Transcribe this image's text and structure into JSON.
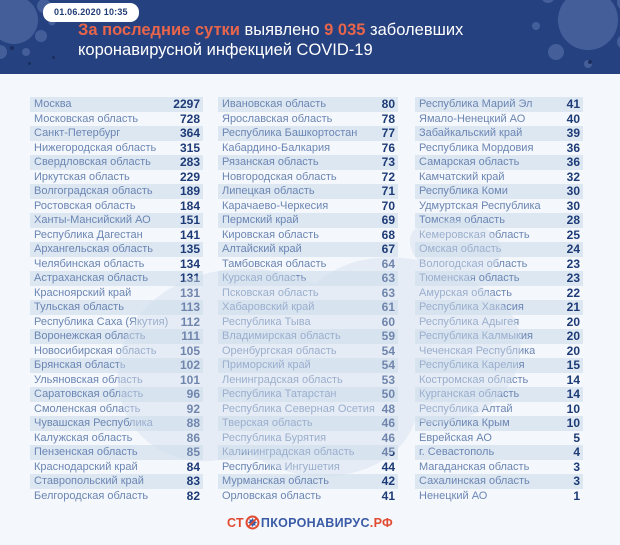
{
  "header": {
    "timestamp": "01.06.2020 10:35",
    "accent1": "За последние сутки ",
    "mid": "выявлено ",
    "count": "9 035 ",
    "tail": "заболевших",
    "line2": "коронавирусной инфекцией COVID-19"
  },
  "footer": {
    "logo_prefix": "СТ",
    "logo_body": "ПКОРОНАВИРУС",
    "logo_tld": ".РФ",
    "logo_icon": "no-virus-icon"
  },
  "colors": {
    "header_navy": "#26417f",
    "accent_orange": "#e7654b",
    "stripe_blue": "#dde7f2",
    "name_blue": "#6b86b3",
    "value_navy": "#1d3b76",
    "logo_red": "#e14a30",
    "logo_blue": "#3a5ba6",
    "splat_blue": "#46609c"
  },
  "chart_data": {
    "type": "table",
    "title": "За последние сутки выявлено 9 035 заболевших коронавирусной инфекцией COVID-19",
    "timestamp": "01.06.2020 10:35",
    "total_new_cases": 9035,
    "column_fields": [
      "region",
      "new_cases"
    ],
    "columns": [
      {
        "rows": [
          [
            "Москва",
            2297
          ],
          [
            "Московская область",
            728
          ],
          [
            "Санкт-Петербург",
            364
          ],
          [
            "Нижегородская область",
            315
          ],
          [
            "Свердловская область",
            283
          ],
          [
            "Иркутская область",
            229
          ],
          [
            "Волгоградская область",
            189
          ],
          [
            "Ростовская область",
            184
          ],
          [
            "Ханты-Мансийский АО",
            151
          ],
          [
            "Республика Дагестан",
            141
          ],
          [
            "Архангельская область",
            135
          ],
          [
            "Челябинская область",
            134
          ],
          [
            "Астраханская область",
            131
          ],
          [
            "Красноярский край",
            131
          ],
          [
            "Тульская область",
            113
          ],
          [
            "Республика Саха (Якутия)",
            112
          ],
          [
            "Воронежская область",
            111
          ],
          [
            "Новосибирская область",
            105
          ],
          [
            "Брянская область",
            102
          ],
          [
            "Ульяновская область",
            101
          ],
          [
            "Саратовская область",
            96
          ],
          [
            "Смоленская область",
            92
          ],
          [
            "Чувашская Республика",
            88
          ],
          [
            "Калужская область",
            86
          ],
          [
            "Пензенская область",
            85
          ],
          [
            "Краснодарский край",
            84
          ],
          [
            "Ставропольский край",
            83
          ],
          [
            "Белгородская область",
            82
          ]
        ]
      },
      {
        "rows": [
          [
            "Ивановская область",
            80
          ],
          [
            "Ярославская область",
            78
          ],
          [
            "Республика Башкортостан",
            77
          ],
          [
            "Кабардино-Балкария",
            76
          ],
          [
            "Рязанская область",
            73
          ],
          [
            "Новгородская область",
            72
          ],
          [
            "Липецкая область",
            71
          ],
          [
            "Карачаево-Черкесия",
            70
          ],
          [
            "Пермский край",
            69
          ],
          [
            "Кировская область",
            68
          ],
          [
            "Алтайский край",
            67
          ],
          [
            "Тамбовская область",
            64
          ],
          [
            "Курская область",
            63
          ],
          [
            "Псковская область",
            63
          ],
          [
            "Хабаровский край",
            61
          ],
          [
            "Республика Тыва",
            60
          ],
          [
            "Владимирская область",
            59
          ],
          [
            "Оренбургская область",
            54
          ],
          [
            "Приморский край",
            54
          ],
          [
            "Ленинградская область",
            53
          ],
          [
            "Республика Татарстан",
            50
          ],
          [
            "Республика Северная Осетия",
            48
          ],
          [
            "Тверская область",
            46
          ],
          [
            "Республика Бурятия",
            46
          ],
          [
            "Калининградская область",
            45
          ],
          [
            "Республика Ингушетия",
            44
          ],
          [
            "Мурманская область",
            42
          ],
          [
            "Орловская область",
            41
          ]
        ]
      },
      {
        "rows": [
          [
            "Республика Марий Эл",
            41
          ],
          [
            "Ямало-Ненецкий АО",
            40
          ],
          [
            "Забайкальский край",
            39
          ],
          [
            "Республика Мордовия",
            36
          ],
          [
            "Самарская область",
            36
          ],
          [
            "Камчатский край",
            32
          ],
          [
            "Республика Коми",
            30
          ],
          [
            "Удмуртская Республика",
            30
          ],
          [
            "Томская область",
            28
          ],
          [
            "Кемеровская область",
            25
          ],
          [
            "Омская область",
            24
          ],
          [
            "Вологодская область",
            23
          ],
          [
            "Тюменская область",
            23
          ],
          [
            "Амурская область",
            22
          ],
          [
            "Республика Хакасия",
            21
          ],
          [
            "Республика Адыгея",
            20
          ],
          [
            "Республика Калмыкия",
            20
          ],
          [
            "Чеченская Республика",
            20
          ],
          [
            "Республика Карелия",
            15
          ],
          [
            "Костромская область",
            14
          ],
          [
            "Курганская область",
            14
          ],
          [
            "Республика Алтай",
            10
          ],
          [
            "Республика Крым",
            10
          ],
          [
            "Еврейская АО",
            5
          ],
          [
            "г. Севастополь",
            4
          ],
          [
            "Магаданская область",
            3
          ],
          [
            "Сахалинская область",
            3
          ],
          [
            "Ненецкий АО",
            1
          ]
        ]
      }
    ]
  }
}
